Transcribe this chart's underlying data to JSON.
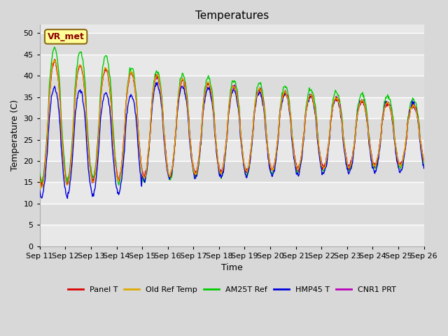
{
  "title": "Temperatures",
  "xlabel": "Time",
  "ylabel": "Temperature (C)",
  "ylim": [
    0,
    52
  ],
  "yticks": [
    0,
    5,
    10,
    15,
    20,
    25,
    30,
    35,
    40,
    45,
    50
  ],
  "xtick_labels": [
    "Sep 11",
    "Sep 12",
    "Sep 13",
    "Sep 14",
    "Sep 15",
    "Sep 16",
    "Sep 17",
    "Sep 18",
    "Sep 19",
    "Sep 20",
    "Sep 21",
    "Sep 22",
    "Sep 23",
    "Sep 24",
    "Sep 25",
    "Sep 26"
  ],
  "annotation_text": "VR_met",
  "colors": {
    "Panel T": "#dd0000",
    "Old Ref Temp": "#ddaa00",
    "AM25T Ref": "#00cc00",
    "HMP45 T": "#0000dd",
    "CNR1 PRT": "#bb00bb"
  },
  "fig_bg": "#d8d8d8",
  "plot_bg": "#e8e8e8",
  "band_light": "#e8e8e8",
  "band_dark": "#dcdcdc",
  "grid_color": "white",
  "title_fontsize": 11,
  "axis_label_fontsize": 9,
  "tick_fontsize": 8
}
